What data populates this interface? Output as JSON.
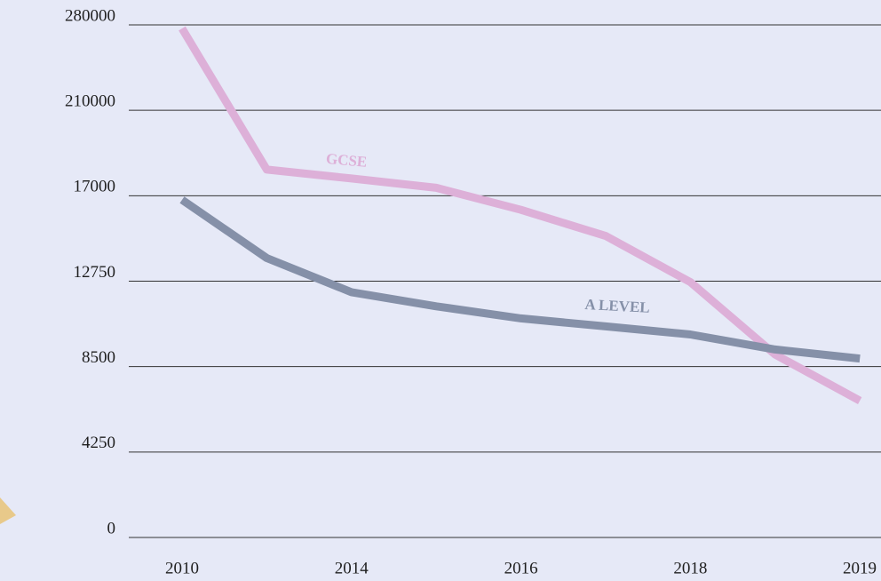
{
  "chart_data": {
    "type": "line",
    "categories": [
      "2010",
      null,
      "2014",
      null,
      "2016",
      null,
      "2018",
      null,
      "2019"
    ],
    "series": [
      {
        "name": "GCSE",
        "color": "#ddb0d8",
        "values": [
          277000,
          76000,
          56000,
          35000,
          16300,
          15000,
          12700,
          9100,
          6800
        ]
      },
      {
        "name": "A LEVEL",
        "color": "#8590a8",
        "values": [
          16800,
          13900,
          12200,
          11500,
          10900,
          10500,
          10100,
          9350,
          8900
        ]
      }
    ],
    "ylim": [
      0,
      280000
    ],
    "yticks": [
      0,
      4250,
      8500,
      12750,
      17000,
      210000,
      280000
    ],
    "grid": true
  }
}
